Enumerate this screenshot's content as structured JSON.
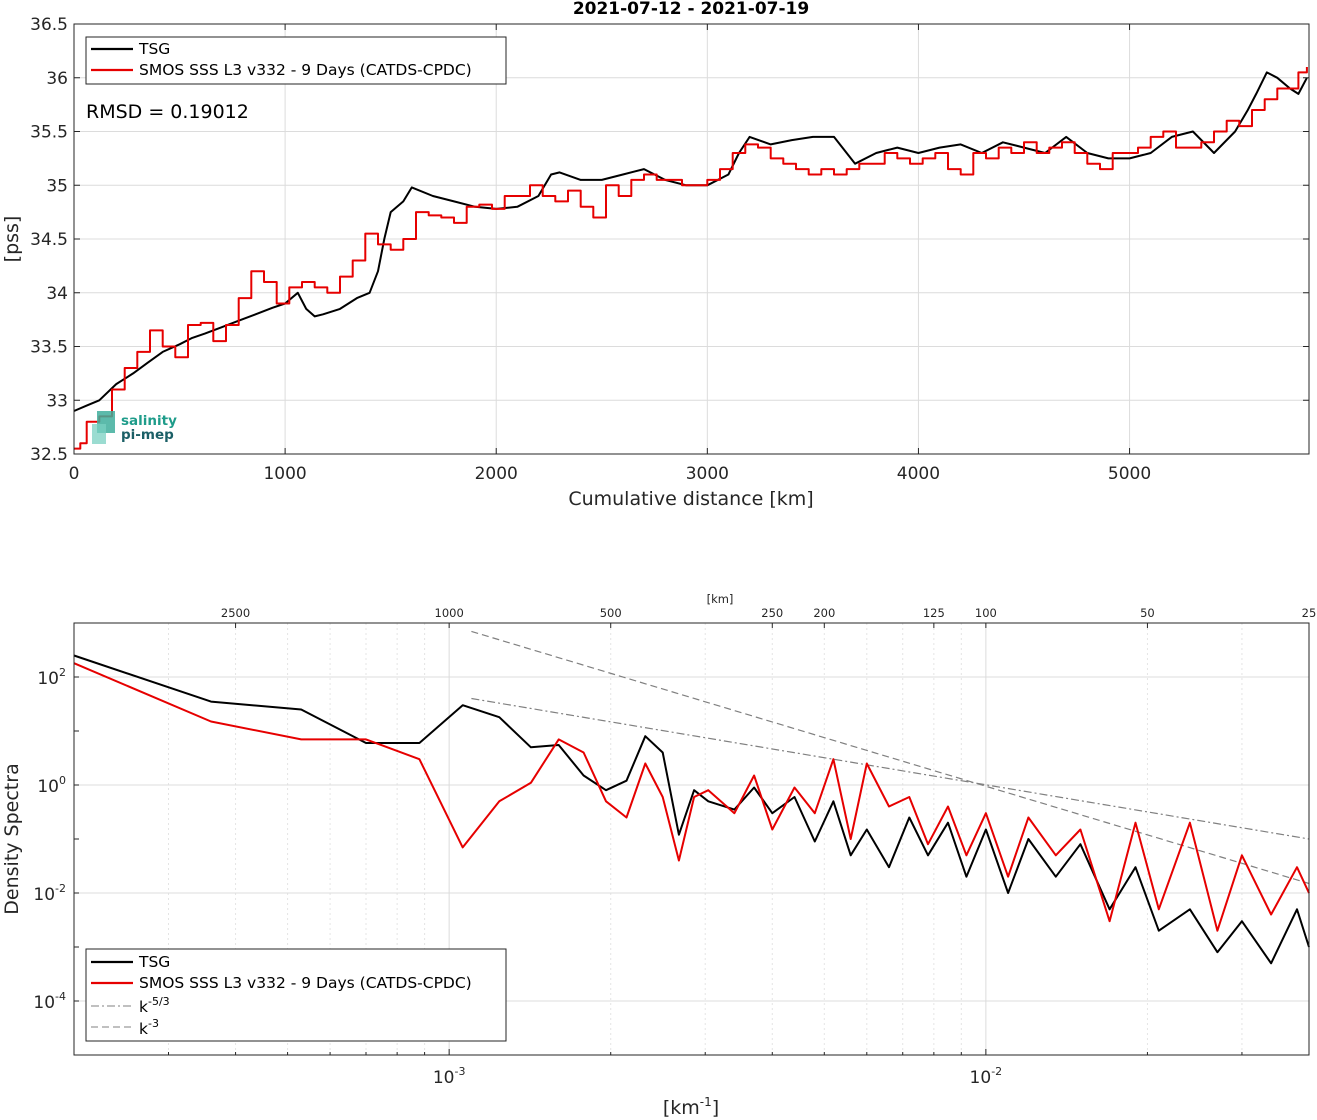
{
  "chart_data": [
    {
      "type": "line",
      "title": "2021-07-12 - 2021-07-19",
      "xlabel": "Cumulative distance [km]",
      "ylabel": "[pss]",
      "xlim": [
        0,
        5850
      ],
      "ylim": [
        32.5,
        36.5
      ],
      "x_ticks": [
        0,
        1000,
        2000,
        3000,
        4000,
        5000
      ],
      "x_tick_labels": [
        "0",
        "1000",
        "2000",
        "3000",
        "4000",
        "5000"
      ],
      "y_ticks": [
        32.5,
        33,
        33.5,
        34,
        34.5,
        35,
        35.5,
        36,
        36.5
      ],
      "y_tick_labels": [
        "32.5",
        "33",
        "33.5",
        "34",
        "34.5",
        "35",
        "35.5",
        "36",
        "36.5"
      ],
      "grid": true,
      "legend_position": "top-left",
      "annotation": "RMSD = 0.19012",
      "logo": {
        "line1": "salinity",
        "line2": "pi-mep"
      },
      "series": [
        {
          "name": "TSG",
          "color": "#000000",
          "x": [
            0,
            60,
            120,
            200,
            280,
            350,
            420,
            500,
            560,
            620,
            700,
            780,
            860,
            940,
            1000,
            1060,
            1100,
            1140,
            1180,
            1260,
            1340,
            1400,
            1440,
            1470,
            1500,
            1560,
            1600,
            1700,
            1800,
            1900,
            2000,
            2100,
            2200,
            2260,
            2300,
            2400,
            2500,
            2600,
            2700,
            2800,
            2900,
            3000,
            3100,
            3150,
            3200,
            3300,
            3400,
            3500,
            3600,
            3700,
            3800,
            3900,
            4000,
            4100,
            4200,
            4300,
            4400,
            4500,
            4600,
            4700,
            4800,
            4900,
            5000,
            5100,
            5200,
            5300,
            5400,
            5500,
            5560,
            5600,
            5650,
            5700,
            5760,
            5800,
            5840
          ],
          "y": [
            32.9,
            32.95,
            33.0,
            33.15,
            33.25,
            33.35,
            33.45,
            33.52,
            33.58,
            33.62,
            33.68,
            33.74,
            33.8,
            33.86,
            33.9,
            34.0,
            33.85,
            33.78,
            33.8,
            33.85,
            33.95,
            34.0,
            34.2,
            34.5,
            34.75,
            34.85,
            34.98,
            34.9,
            34.85,
            34.8,
            34.78,
            34.8,
            34.9,
            35.1,
            35.12,
            35.05,
            35.05,
            35.1,
            35.15,
            35.05,
            35.0,
            35.0,
            35.1,
            35.3,
            35.45,
            35.38,
            35.42,
            35.45,
            35.45,
            35.2,
            35.3,
            35.35,
            35.3,
            35.35,
            35.38,
            35.3,
            35.4,
            35.35,
            35.3,
            35.45,
            35.3,
            35.25,
            35.25,
            35.3,
            35.45,
            35.5,
            35.3,
            35.5,
            35.7,
            35.85,
            36.05,
            36.0,
            35.9,
            35.85,
            36.0
          ]
        },
        {
          "name": "SMOS SSS L3 v332 - 9 Days (CATDS-CPDC)",
          "color": "#e60000",
          "x": [
            0,
            30,
            60,
            120,
            180,
            240,
            300,
            360,
            420,
            480,
            540,
            600,
            660,
            720,
            780,
            840,
            900,
            960,
            1020,
            1080,
            1140,
            1200,
            1260,
            1320,
            1380,
            1440,
            1500,
            1560,
            1620,
            1680,
            1740,
            1800,
            1860,
            1920,
            1980,
            2040,
            2100,
            2160,
            2220,
            2280,
            2340,
            2400,
            2460,
            2520,
            2580,
            2640,
            2700,
            2760,
            2820,
            2880,
            2940,
            3000,
            3060,
            3120,
            3180,
            3240,
            3300,
            3360,
            3420,
            3480,
            3540,
            3600,
            3660,
            3720,
            3780,
            3840,
            3900,
            3960,
            4020,
            4080,
            4140,
            4200,
            4260,
            4320,
            4380,
            4440,
            4500,
            4560,
            4620,
            4680,
            4740,
            4800,
            4860,
            4920,
            4980,
            5040,
            5100,
            5160,
            5220,
            5280,
            5340,
            5400,
            5460,
            5520,
            5580,
            5640,
            5700,
            5760,
            5800,
            5840
          ],
          "y": [
            32.55,
            32.6,
            32.8,
            32.85,
            33.1,
            33.3,
            33.45,
            33.65,
            33.5,
            33.4,
            33.7,
            33.72,
            33.55,
            33.7,
            33.95,
            34.2,
            34.1,
            33.9,
            34.05,
            34.1,
            34.05,
            34.0,
            34.15,
            34.3,
            34.55,
            34.45,
            34.4,
            34.5,
            34.75,
            34.72,
            34.7,
            34.65,
            34.8,
            34.82,
            34.78,
            34.9,
            34.9,
            35.0,
            34.9,
            34.85,
            34.95,
            34.8,
            34.7,
            35.0,
            34.9,
            35.05,
            35.1,
            35.05,
            35.05,
            35.0,
            35.0,
            35.05,
            35.15,
            35.3,
            35.38,
            35.35,
            35.25,
            35.2,
            35.15,
            35.1,
            35.15,
            35.1,
            35.15,
            35.2,
            35.2,
            35.3,
            35.25,
            35.2,
            35.25,
            35.3,
            35.15,
            35.1,
            35.3,
            35.25,
            35.35,
            35.3,
            35.4,
            35.3,
            35.35,
            35.4,
            35.3,
            35.2,
            35.15,
            35.3,
            35.3,
            35.35,
            35.45,
            35.5,
            35.35,
            35.35,
            35.4,
            35.5,
            35.6,
            35.55,
            35.7,
            35.8,
            35.9,
            35.9,
            36.05,
            36.1
          ]
        }
      ]
    },
    {
      "type": "line",
      "title": "",
      "xlabel": "[km^-1]",
      "xlabel_base": "[km",
      "xlabel_exp": "-1",
      "xlabel_end": "]",
      "ylabel": "Density Spectra",
      "x_scale": "log",
      "y_scale": "log",
      "xlim": [
        0.0002,
        0.04
      ],
      "ylim": [
        1e-05,
        1000
      ],
      "x_ticks": [
        0.001,
        0.01
      ],
      "x_tick_base": [
        "10",
        "10"
      ],
      "x_tick_exp": [
        "-3",
        "-2"
      ],
      "y_ticks": [
        0.0001,
        0.01,
        1,
        100
      ],
      "y_tick_base": [
        "10",
        "10",
        "10",
        "10"
      ],
      "y_tick_exp": [
        "-4",
        "-2",
        "0",
        "2"
      ],
      "top_axis_label": "[km]",
      "top_axis_ticks": [
        "2500",
        "1000",
        "500",
        "250",
        "200",
        "125",
        "100",
        "50",
        "25"
      ],
      "top_axis_values": [
        2500,
        1000,
        500,
        250,
        200,
        125,
        100,
        50,
        25
      ],
      "grid": true,
      "legend_position": "bottom-left",
      "series": [
        {
          "name": "TSG",
          "color": "#000000",
          "x": [
            0.0002,
            0.00036,
            0.00053,
            0.0007,
            0.00088,
            0.00106,
            0.00124,
            0.00142,
            0.0016,
            0.00178,
            0.00196,
            0.00214,
            0.00232,
            0.0025,
            0.00268,
            0.00286,
            0.00304,
            0.0034,
            0.0037,
            0.004,
            0.0044,
            0.0048,
            0.0052,
            0.0056,
            0.006,
            0.0066,
            0.0072,
            0.0078,
            0.0085,
            0.0092,
            0.01,
            0.011,
            0.012,
            0.0135,
            0.015,
            0.017,
            0.019,
            0.021,
            0.024,
            0.027,
            0.03,
            0.034,
            0.038,
            0.04
          ],
          "y": [
            250,
            35,
            25,
            6,
            6,
            30,
            18,
            5,
            5.5,
            1.5,
            0.8,
            1.2,
            8,
            4,
            0.12,
            0.8,
            0.5,
            0.35,
            0.9,
            0.3,
            0.6,
            0.09,
            0.5,
            0.05,
            0.15,
            0.03,
            0.25,
            0.05,
            0.2,
            0.02,
            0.15,
            0.01,
            0.1,
            0.02,
            0.08,
            0.005,
            0.03,
            0.002,
            0.005,
            0.0008,
            0.003,
            0.0005,
            0.005,
            0.001
          ]
        },
        {
          "name": "SMOS SSS L3 v332 - 9 Days (CATDS-CPDC)",
          "color": "#e60000",
          "x": [
            0.0002,
            0.00036,
            0.00053,
            0.0007,
            0.00088,
            0.00106,
            0.00124,
            0.00142,
            0.0016,
            0.00178,
            0.00196,
            0.00214,
            0.00232,
            0.0025,
            0.00268,
            0.00286,
            0.00304,
            0.0034,
            0.0037,
            0.004,
            0.0044,
            0.0048,
            0.0052,
            0.0056,
            0.006,
            0.0066,
            0.0072,
            0.0078,
            0.0085,
            0.0092,
            0.01,
            0.011,
            0.012,
            0.0135,
            0.015,
            0.017,
            0.019,
            0.021,
            0.024,
            0.027,
            0.03,
            0.034,
            0.038,
            0.04
          ],
          "y": [
            180,
            15,
            7,
            7,
            3,
            0.07,
            0.5,
            1.1,
            7,
            4,
            0.5,
            0.25,
            2.5,
            0.6,
            0.04,
            0.6,
            0.8,
            0.3,
            1.5,
            0.15,
            0.9,
            0.3,
            3,
            0.1,
            2.5,
            0.4,
            0.6,
            0.08,
            0.4,
            0.05,
            0.3,
            0.02,
            0.25,
            0.05,
            0.15,
            0.003,
            0.2,
            0.005,
            0.2,
            0.002,
            0.05,
            0.004,
            0.03,
            0.01
          ]
        },
        {
          "name": "k^-5/3",
          "label_base": "k",
          "label_exp": "-5/3",
          "color": "#808080",
          "style": "dashdot",
          "x": [
            0.0011,
            0.04
          ],
          "y": [
            40,
            0.1
          ]
        },
        {
          "name": "k^-3",
          "label_base": "k",
          "label_exp": "-3",
          "color": "#808080",
          "style": "dashed",
          "x": [
            0.0011,
            0.04
          ],
          "y": [
            700,
            0.015
          ]
        }
      ]
    }
  ]
}
